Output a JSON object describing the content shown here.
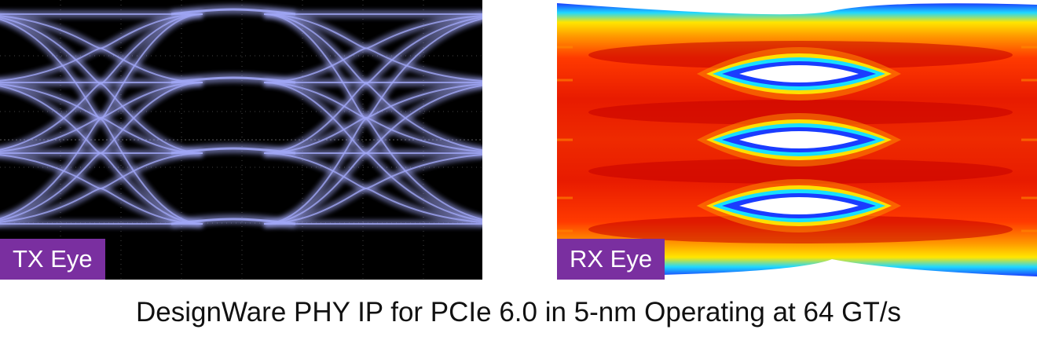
{
  "panels": [
    {
      "id": "tx",
      "label": "TX Eye"
    },
    {
      "id": "rx",
      "label": "RX Eye"
    }
  ],
  "caption": "DesignWare PHY IP for PCIe 6.0 in 5-nm Operating at 64 GT/s",
  "colors": {
    "label_bg": "#7a2fa0",
    "label_text": "#ffffff",
    "tx_trace": "#a0a6f5",
    "rx_core": "#e81b00",
    "rx_edge": "#1a3cff"
  }
}
